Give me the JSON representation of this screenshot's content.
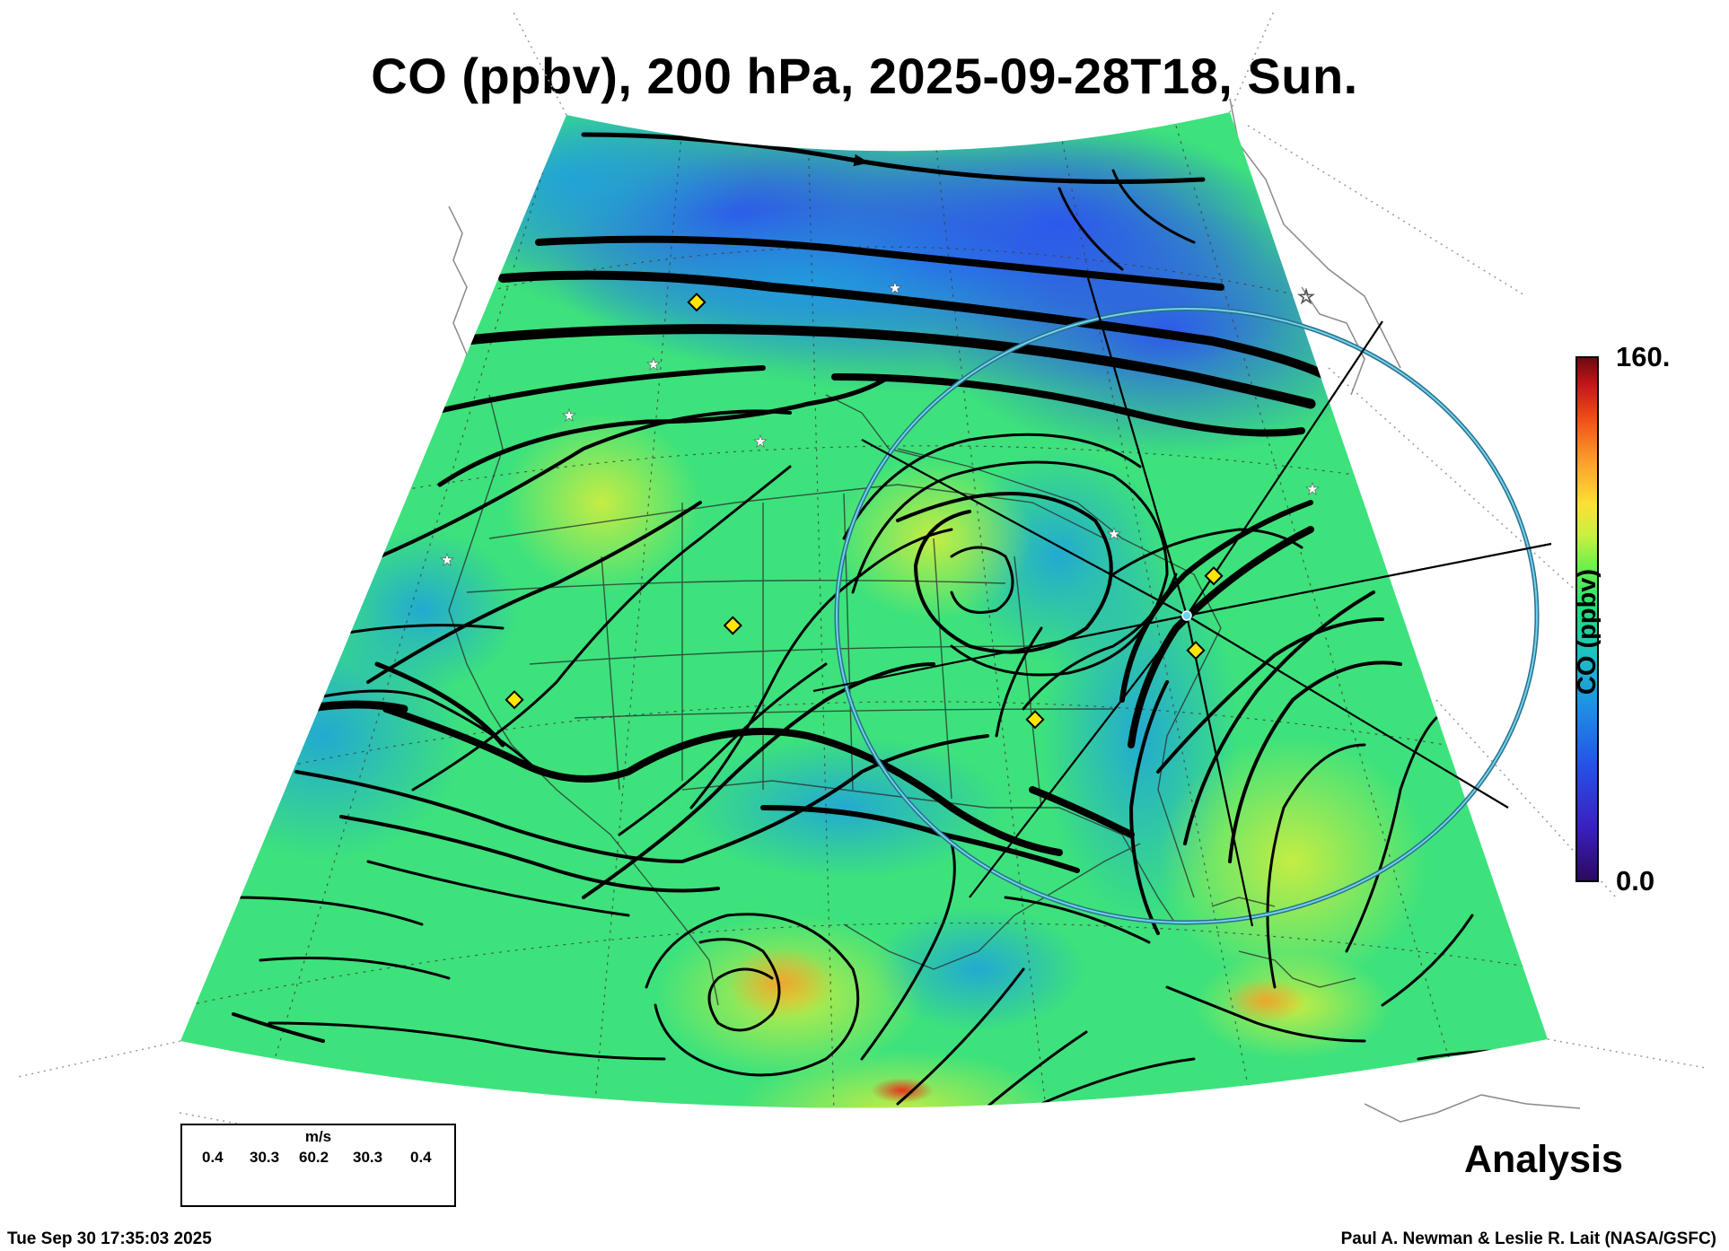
{
  "title": "CO (ppbv), 200 hPa, 2025-09-28T18, Sun.",
  "colorbar": {
    "label": "CO (ppbv)",
    "max": "160.",
    "min": "0.0",
    "colors": [
      "#2a0a5a",
      "#3a1fbf",
      "#2650e8",
      "#1e8ee6",
      "#1cc4c0",
      "#22e07a",
      "#6ef04a",
      "#c9f040",
      "#fde034",
      "#fca02a",
      "#f25018",
      "#c0141a",
      "#6a0a0e"
    ]
  },
  "legend": {
    "unit": "m/s",
    "ticks": [
      "0.4",
      "30.3",
      "60.2",
      "30.3",
      "0.4"
    ]
  },
  "analysis_label": "Analysis",
  "timestamp": "Tue Sep 30 17:35:03 2025",
  "credit": "Paul A. Newman & Leslie R. Lait (NASA/GSFC)",
  "colors": {
    "low_co": "#2f5cf0",
    "mid_co": "#3fe37a",
    "high_co": "#e8ec3a",
    "streamline": "#000000",
    "range_ring": "#3aa8c8",
    "site_marker": "#ffe600"
  },
  "map_features": {
    "projection": "conic",
    "streamlines": "wind at 200 hPa",
    "site_markers": "yellow diamonds",
    "star_markers": "white stars",
    "range_ring": "cyan circle"
  }
}
